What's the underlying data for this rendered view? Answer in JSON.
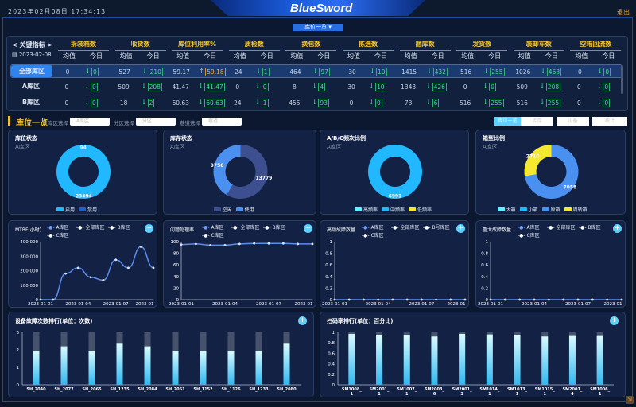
{
  "header": {
    "datetime": "2023年02月08日 17:34:13",
    "logo": "BlueSword",
    "logout": "退出",
    "view_select": "库位一览 ▾"
  },
  "table": {
    "nav_label": "< 关键指标 >",
    "date": "2023-02-08",
    "avg_label": "均值",
    "today_label": "今日",
    "groups": [
      "拆装箱数",
      "收货数",
      "库位利用率%",
      "质检数",
      "换包数",
      "拣选数",
      "翻库数",
      "发货数",
      "装卸车数",
      "空箱回流数"
    ],
    "rows": [
      {
        "label": "全部库区",
        "selected": true,
        "cells": [
          [
            "0",
            "0",
            "down"
          ],
          [
            "527",
            "210",
            "down"
          ],
          [
            "59.17",
            "59.18",
            "up"
          ],
          [
            "24",
            "1",
            "down"
          ],
          [
            "464",
            "97",
            "down"
          ],
          [
            "30",
            "10",
            "down"
          ],
          [
            "1415",
            "432",
            "down"
          ],
          [
            "516",
            "255",
            "down"
          ],
          [
            "1026",
            "463",
            "down"
          ],
          [
            "0",
            "0",
            "down"
          ]
        ]
      },
      {
        "label": "A库区",
        "selected": false,
        "cells": [
          [
            "0",
            "0",
            "down"
          ],
          [
            "509",
            "208",
            "down"
          ],
          [
            "41.47",
            "41.47",
            "down"
          ],
          [
            "0",
            "0",
            "down"
          ],
          [
            "8",
            "4",
            "down"
          ],
          [
            "30",
            "10",
            "down"
          ],
          [
            "1343",
            "426",
            "down"
          ],
          [
            "0",
            "0",
            "down"
          ],
          [
            "509",
            "208",
            "down"
          ],
          [
            "0",
            "0",
            "down"
          ]
        ]
      },
      {
        "label": "B库区",
        "selected": false,
        "cells": [
          [
            "0",
            "0",
            "down"
          ],
          [
            "18",
            "2",
            "down"
          ],
          [
            "60.63",
            "60.63",
            "down"
          ],
          [
            "24",
            "1",
            "down"
          ],
          [
            "455",
            "93",
            "down"
          ],
          [
            "0",
            "0",
            "down"
          ],
          [
            "73",
            "6",
            "down"
          ],
          [
            "516",
            "255",
            "down"
          ],
          [
            "516",
            "255",
            "down"
          ],
          [
            "0",
            "0",
            "down"
          ]
        ]
      }
    ]
  },
  "section": {
    "title": "库位一览",
    "filters": [
      {
        "label": "库区选择",
        "value": "A库区"
      },
      {
        "label": "分区选择",
        "value": "分区"
      },
      {
        "label": "巷道选择",
        "value": "巷道"
      }
    ],
    "tabs": [
      "库位一览",
      "库存",
      "设备",
      "统计"
    ],
    "active_tab": 0
  },
  "donuts": [
    {
      "title": "库位状态",
      "subtitle": "A库区",
      "slices": [
        {
          "name": "启用",
          "value": 23494,
          "color": "#22b8ff",
          "label": "23494"
        },
        {
          "name": "禁用",
          "value": 94,
          "color": "#1f5fd0",
          "label": "94"
        }
      ]
    },
    {
      "title": "库存状态",
      "subtitle": "A库区",
      "slices": [
        {
          "name": "空闲",
          "value": 13779,
          "color": "#3d4f8f",
          "label": "13779"
        },
        {
          "name": "使用",
          "value": 9750,
          "color": "#4a90f0",
          "label": "9750"
        }
      ]
    },
    {
      "title": "A/B/C频次比例",
      "subtitle": "A库区",
      "slices": [
        {
          "name": "高频率",
          "value": 0,
          "color": "#60f0ff",
          "label": "0"
        },
        {
          "name": "中频率",
          "value": 6991,
          "color": "#22b8ff",
          "label": "6991"
        },
        {
          "name": "低频率",
          "value": 0,
          "color": "#f5e830",
          "label": ""
        }
      ]
    },
    {
      "title": "箱型比例",
      "subtitle": "A库区",
      "slices": [
        {
          "name": "大箱",
          "value": 0,
          "color": "#60f0ff",
          "label": "0"
        },
        {
          "name": "小箱",
          "value": 0,
          "color": "#22b8ff",
          "label": ""
        },
        {
          "name": "原箱",
          "value": 7058,
          "color": "#4a90f0",
          "label": "7058"
        },
        {
          "name": "周转箱",
          "value": 2710,
          "color": "#f5e830",
          "label": "2710"
        }
      ]
    }
  ],
  "chart_data": [
    {
      "type": "line",
      "title": "MTBF(小时)",
      "legend": [
        "A库区",
        "全部库区",
        "B库区",
        "C库区"
      ],
      "x": [
        "2023-01-01",
        "2023-01-02",
        "2023-01-03",
        "2023-01-04",
        "2023-01-05",
        "2023-01-06",
        "2023-01-07",
        "2023-01-08",
        "2023-01-09",
        "2023-01-10"
      ],
      "xticks": [
        "2023-01-01",
        "2023-01-04",
        "2023-01-07",
        "2023-01-"
      ],
      "yticks": [
        "0",
        "100,000",
        "200,000",
        "300,000",
        "400,000"
      ],
      "ylim": [
        0,
        400000
      ],
      "series": [
        {
          "name": "A库区",
          "values": [
            0,
            0,
            180000,
            220000,
            155000,
            135000,
            275000,
            220000,
            365000,
            220000
          ]
        }
      ]
    },
    {
      "type": "line",
      "title": "问题处理率",
      "legend": [
        "A库区",
        "全部库区",
        "B库区",
        "C库区"
      ],
      "x": [
        "2023-01-01",
        "2023-01-02",
        "2023-01-03",
        "2023-01-04",
        "2023-01-05",
        "2023-01-06",
        "2023-01-07",
        "2023-01-08",
        "2023-01-09",
        "2023-01-10"
      ],
      "xticks": [
        "2023-01-01",
        "2023-01-04",
        "2023-01-07",
        "2023-01-"
      ],
      "yticks": [
        "0",
        "20",
        "40",
        "60",
        "80",
        "100"
      ],
      "ylim": [
        0,
        100
      ],
      "series": [
        {
          "name": "A库区",
          "values": [
            95,
            96,
            94,
            94,
            96,
            97,
            97,
            97,
            96,
            96
          ]
        }
      ]
    },
    {
      "type": "line",
      "title": "高频故障数量",
      "legend": [
        "A库区",
        "全部库区",
        "B号库区",
        "C库区"
      ],
      "x": [
        "2023-01-01",
        "2023-01-02",
        "2023-01-03",
        "2023-01-04",
        "2023-01-05",
        "2023-01-06",
        "2023-01-07",
        "2023-01-08",
        "2023-01-09",
        "2023-01-10"
      ],
      "xticks": [
        "2023-01-01",
        "2023-01-04",
        "2023-01-07",
        "2023-01-"
      ],
      "yticks": [
        "0",
        "0.2",
        "0.4",
        "0.6",
        "0.8",
        "1"
      ],
      "ylim": [
        0,
        1
      ],
      "series": [
        {
          "name": "A库区",
          "values": [
            0,
            0,
            0,
            0,
            0,
            0,
            0,
            0,
            0,
            0
          ]
        }
      ]
    },
    {
      "type": "line",
      "title": "重大故障数量",
      "legend": [
        "A库区",
        "全部库区",
        "B库区",
        "C库区"
      ],
      "x": [
        "2023-01-01",
        "2023-01-02",
        "2023-01-03",
        "2023-01-04",
        "2023-01-05",
        "2023-01-06",
        "2023-01-07",
        "2023-01-08",
        "2023-01-09",
        "2023-01-10"
      ],
      "xticks": [
        "2023-01-01",
        "2023-01-04",
        "2023-01-07",
        "2023-01-"
      ],
      "yticks": [
        "0",
        "0.2",
        "0.4",
        "0.6",
        "0.8",
        "1"
      ],
      "ylim": [
        0,
        1
      ],
      "series": [
        {
          "name": "A库区",
          "values": [
            0,
            0,
            0,
            0,
            0,
            0,
            0,
            0,
            0,
            0
          ]
        }
      ]
    },
    {
      "type": "bar",
      "title": "设备故障次数排行(单位：次数)",
      "categories": [
        "SH_2040",
        "SH_2077",
        "SH_2065",
        "SH_1235",
        "SH_2084",
        "SH_2061",
        "SH_1152",
        "SH_1126",
        "SH_1233",
        "SH_2080"
      ],
      "values": [
        1.95,
        2.2,
        1.95,
        2.35,
        2.2,
        1.95,
        1.95,
        1.95,
        1.95,
        2.35
      ],
      "yticks": [
        "0",
        "1",
        "2",
        "3"
      ],
      "ylim": [
        0,
        3
      ]
    },
    {
      "type": "bar",
      "title": "扫码率排行(单位：百分比)",
      "categories": [
        "SM1008_1",
        "SM2001_1",
        "SM1007_1",
        "SM2003_6",
        "SM2001_3",
        "SM1014_1",
        "SM1013_1",
        "SM1015_1",
        "SM2001_4",
        "SM1006_1"
      ],
      "values": [
        0.97,
        0.94,
        0.95,
        0.92,
        0.97,
        0.96,
        0.94,
        0.92,
        0.93,
        0.93
      ],
      "yticks": [
        "0",
        "0.2",
        "0.4",
        "0.6",
        "0.8",
        "1"
      ],
      "ylim": [
        0,
        1
      ]
    }
  ]
}
